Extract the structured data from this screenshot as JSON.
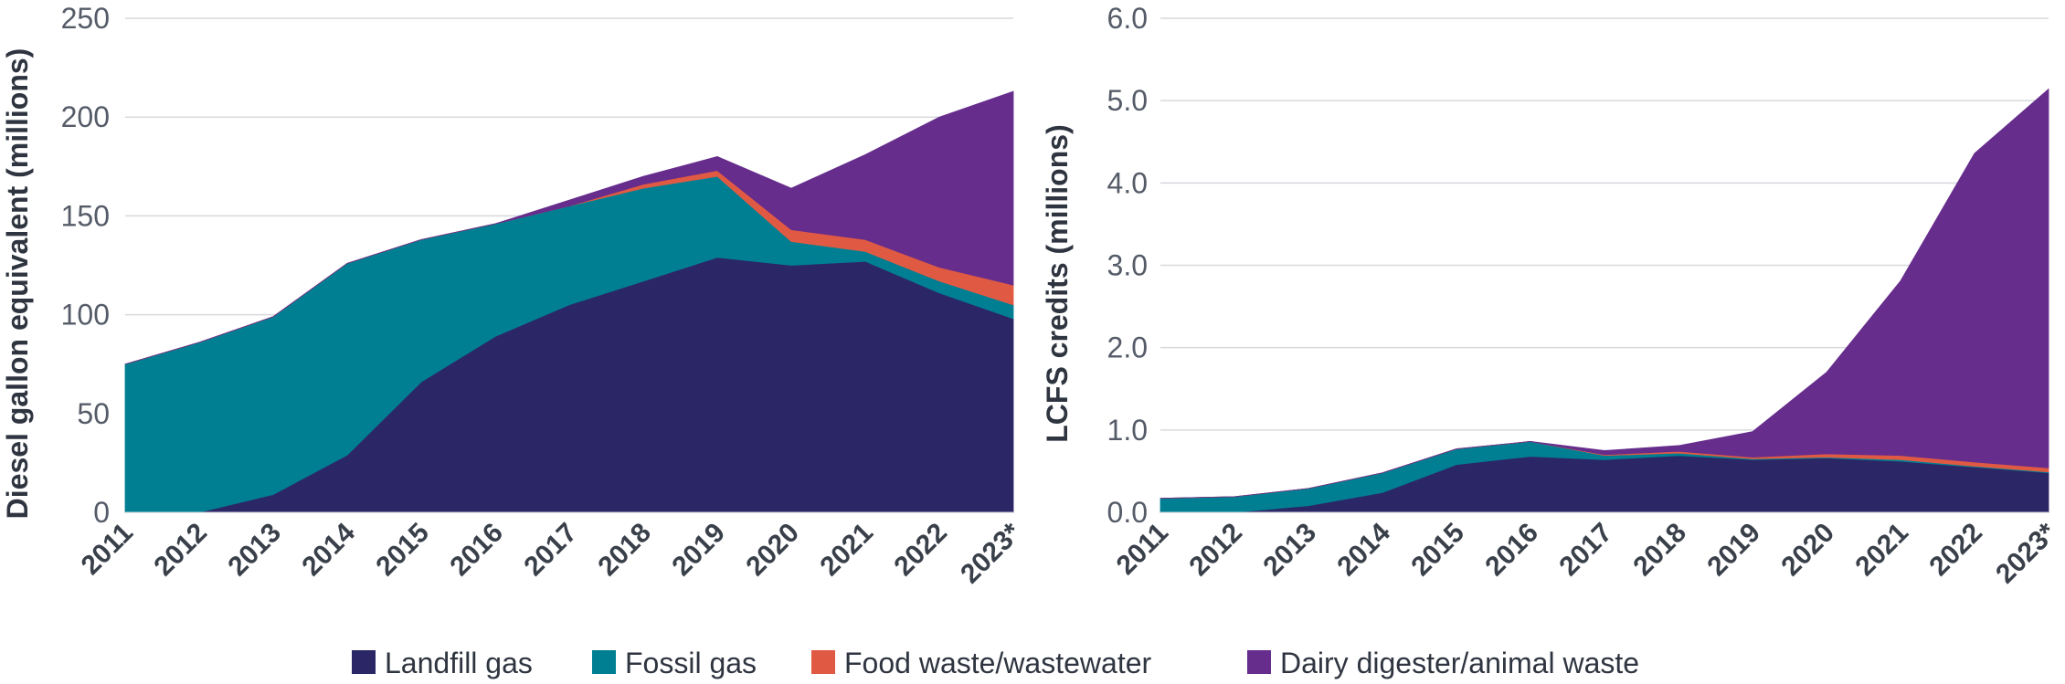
{
  "colors": {
    "landfill": "#2b2766",
    "fossil": "#007f93",
    "food": "#e05a43",
    "dairy": "#662d8c"
  },
  "legend": [
    {
      "label": "Landfill gas",
      "color": "#2b2766"
    },
    {
      "label": "Fossil gas",
      "color": "#007f93"
    },
    {
      "label": "Food waste/wastewater",
      "color": "#e05a43"
    },
    {
      "label": "Dairy digester/animal waste",
      "color": "#662d8c"
    }
  ],
  "chart_data": [
    {
      "type": "area",
      "stacked": true,
      "title": "",
      "xlabel": "",
      "ylabel": "Diesel gallon equivalent (millions)",
      "categories": [
        "2011",
        "2012",
        "2013",
        "2014",
        "2015",
        "2016",
        "2017",
        "2018",
        "2019",
        "2020",
        "2021",
        "2022",
        "2023*"
      ],
      "ylim": [
        0,
        250
      ],
      "yticks": [
        0,
        50,
        100,
        150,
        200,
        250
      ],
      "ytick_labels": [
        "0",
        "50",
        "100",
        "150",
        "200",
        "250"
      ],
      "grid": true,
      "series": [
        {
          "name": "Landfill gas",
          "values": [
            0,
            0,
            9,
            29,
            66,
            89,
            105,
            117,
            129,
            125,
            127,
            111,
            98
          ]
        },
        {
          "name": "Fossil gas",
          "values": [
            75,
            86,
            90,
            97,
            72,
            57,
            50,
            47,
            41,
            12,
            5,
            6,
            7
          ]
        },
        {
          "name": "Food waste/wastewater",
          "values": [
            0,
            0,
            0,
            0,
            0,
            0,
            0,
            2,
            3,
            6,
            6,
            7,
            10
          ]
        },
        {
          "name": "Dairy digester/animal waste",
          "values": [
            0,
            0,
            0,
            0,
            0,
            0,
            3,
            4,
            7,
            21,
            43,
            76,
            98
          ]
        }
      ]
    },
    {
      "type": "area",
      "stacked": true,
      "title": "",
      "xlabel": "",
      "ylabel": "LCFS credits (millions)",
      "categories": [
        "2011",
        "2012",
        "2013",
        "2014",
        "2015",
        "2016",
        "2017",
        "2018",
        "2019",
        "2020",
        "2021",
        "2022",
        "2023*"
      ],
      "ylim": [
        0,
        6
      ],
      "yticks": [
        0,
        1,
        2,
        3,
        4,
        5,
        6
      ],
      "ytick_labels": [
        "0.0",
        "1.0",
        "2.0",
        "3.0",
        "4.0",
        "5.0",
        "6.0"
      ],
      "grid": true,
      "series": [
        {
          "name": "Landfill gas",
          "values": [
            0,
            0,
            0.08,
            0.24,
            0.58,
            0.68,
            0.64,
            0.69,
            0.64,
            0.66,
            0.62,
            0.55,
            0.48
          ]
        },
        {
          "name": "Fossil gas",
          "values": [
            0.17,
            0.19,
            0.21,
            0.24,
            0.19,
            0.18,
            0.05,
            0.03,
            0.01,
            0.01,
            0.02,
            0.01,
            0.01
          ]
        },
        {
          "name": "Food waste/wastewater",
          "values": [
            0,
            0,
            0,
            0,
            0,
            0,
            0.01,
            0.02,
            0.02,
            0.04,
            0.05,
            0.05,
            0.05
          ]
        },
        {
          "name": "Dairy digester/animal waste",
          "values": [
            0,
            0,
            0,
            0,
            0,
            0,
            0.05,
            0.07,
            0.31,
            0.99,
            2.12,
            3.75,
            4.6
          ]
        }
      ]
    }
  ]
}
